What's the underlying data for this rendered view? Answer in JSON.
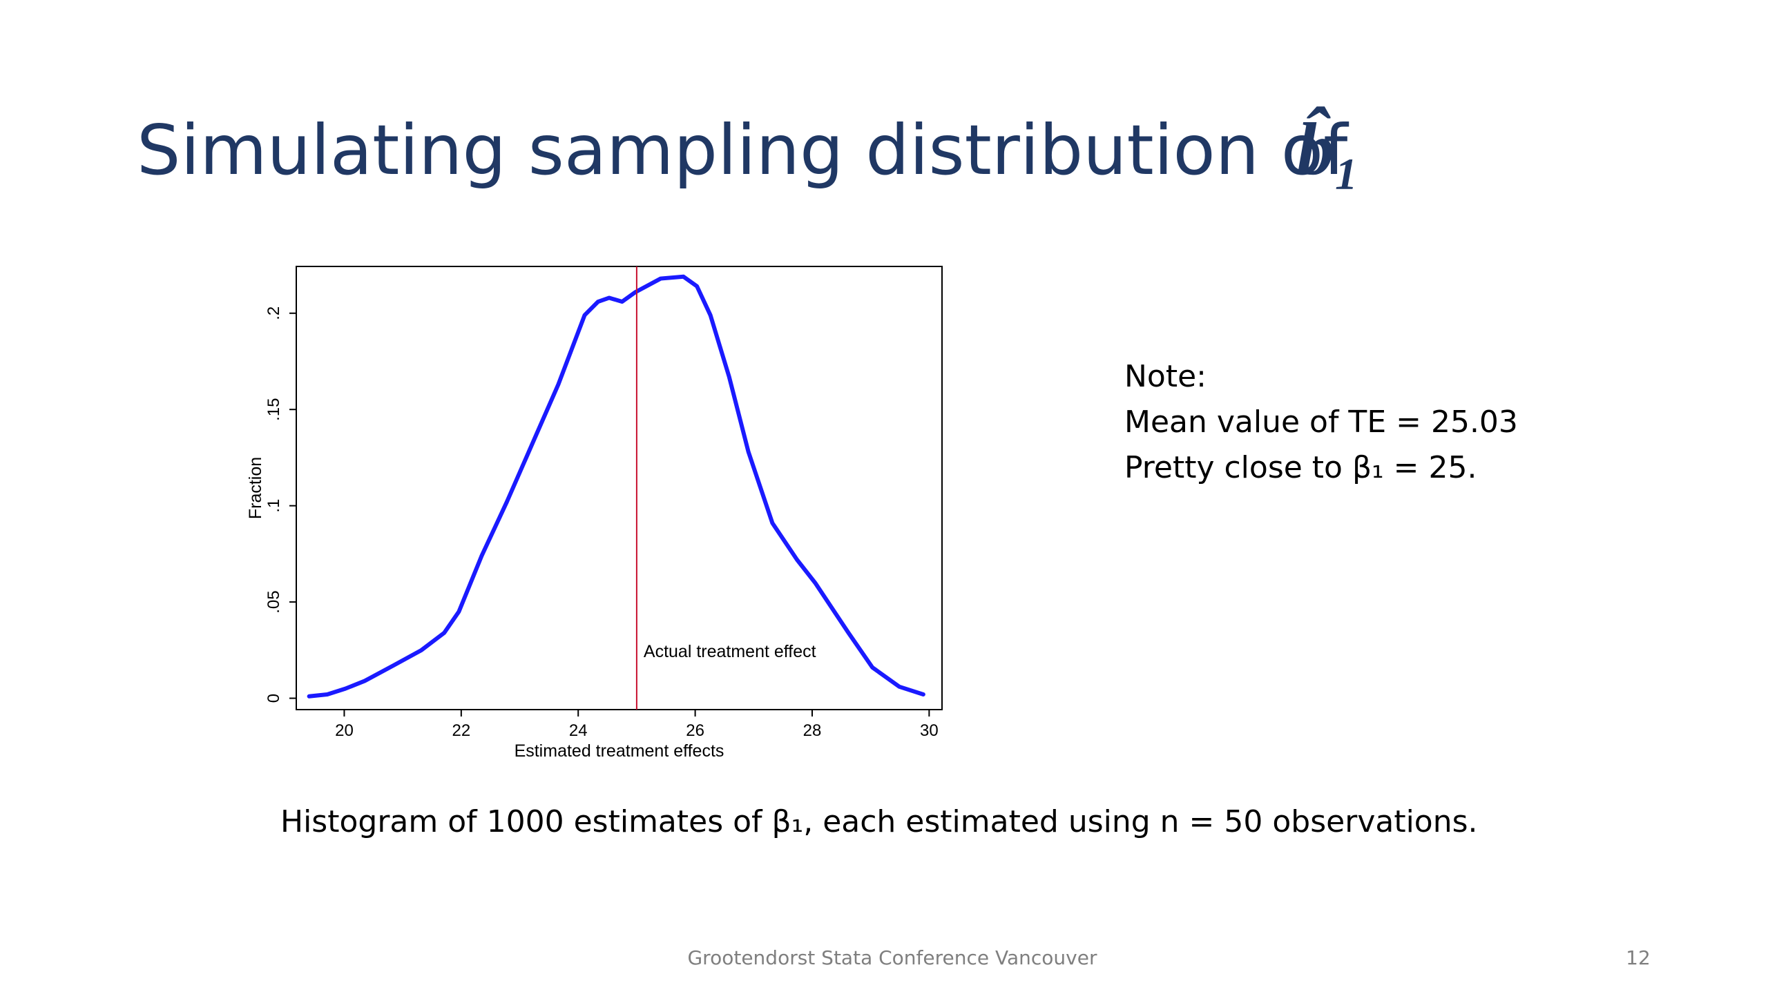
{
  "slide": {
    "title": "Simulating sampling distribution of",
    "title_symbol": "b̂₁",
    "note": [
      "Note:",
      "Mean value of TE = 25.03",
      "Pretty close to β₁ = 25."
    ],
    "caption": "Histogram of 1000 estimates of β₁, each estimated using n = 50 observations.",
    "footer": "Grootendorst Stata Conference Vancouver",
    "page_number": "12"
  },
  "chart_data": {
    "type": "line",
    "x_label": "Estimated treatment effects",
    "y_label": "Fraction",
    "x": [
      19.4,
      19.71,
      20.02,
      20.35,
      20.84,
      21.32,
      21.71,
      21.96,
      22.35,
      22.78,
      23.27,
      23.66,
      24.11,
      24.34,
      24.53,
      24.75,
      24.98,
      25.41,
      25.8,
      26.03,
      26.26,
      26.58,
      26.91,
      27.32,
      27.74,
      28.05,
      28.62,
      29.03,
      29.49,
      29.9
    ],
    "series": [
      {
        "name": "Fraction",
        "color": "#1a1aff",
        "values": [
          0.001,
          0.002,
          0.005,
          0.009,
          0.017,
          0.025,
          0.034,
          0.045,
          0.074,
          0.102,
          0.136,
          0.163,
          0.199,
          0.206,
          0.208,
          0.206,
          0.211,
          0.218,
          0.219,
          0.214,
          0.199,
          0.167,
          0.128,
          0.091,
          0.072,
          0.06,
          0.034,
          0.016,
          0.006,
          0.002
        ]
      }
    ],
    "xlim": [
      19.18,
      30.22
    ],
    "ylim": [
      -0.0059,
      0.2243
    ],
    "xticks": [
      20,
      22,
      24,
      26,
      28,
      30
    ],
    "yticks": [
      0,
      {
        "value": 0.05,
        "label": ".05"
      },
      {
        "value": 0.1,
        "label": ".1"
      },
      {
        "value": 0.15,
        "label": ".15"
      },
      {
        "value": 0.2,
        "label": ".2"
      }
    ],
    "reference_line": {
      "x": 25,
      "label": "Actual treatment effect",
      "color": "#c8102e"
    }
  }
}
